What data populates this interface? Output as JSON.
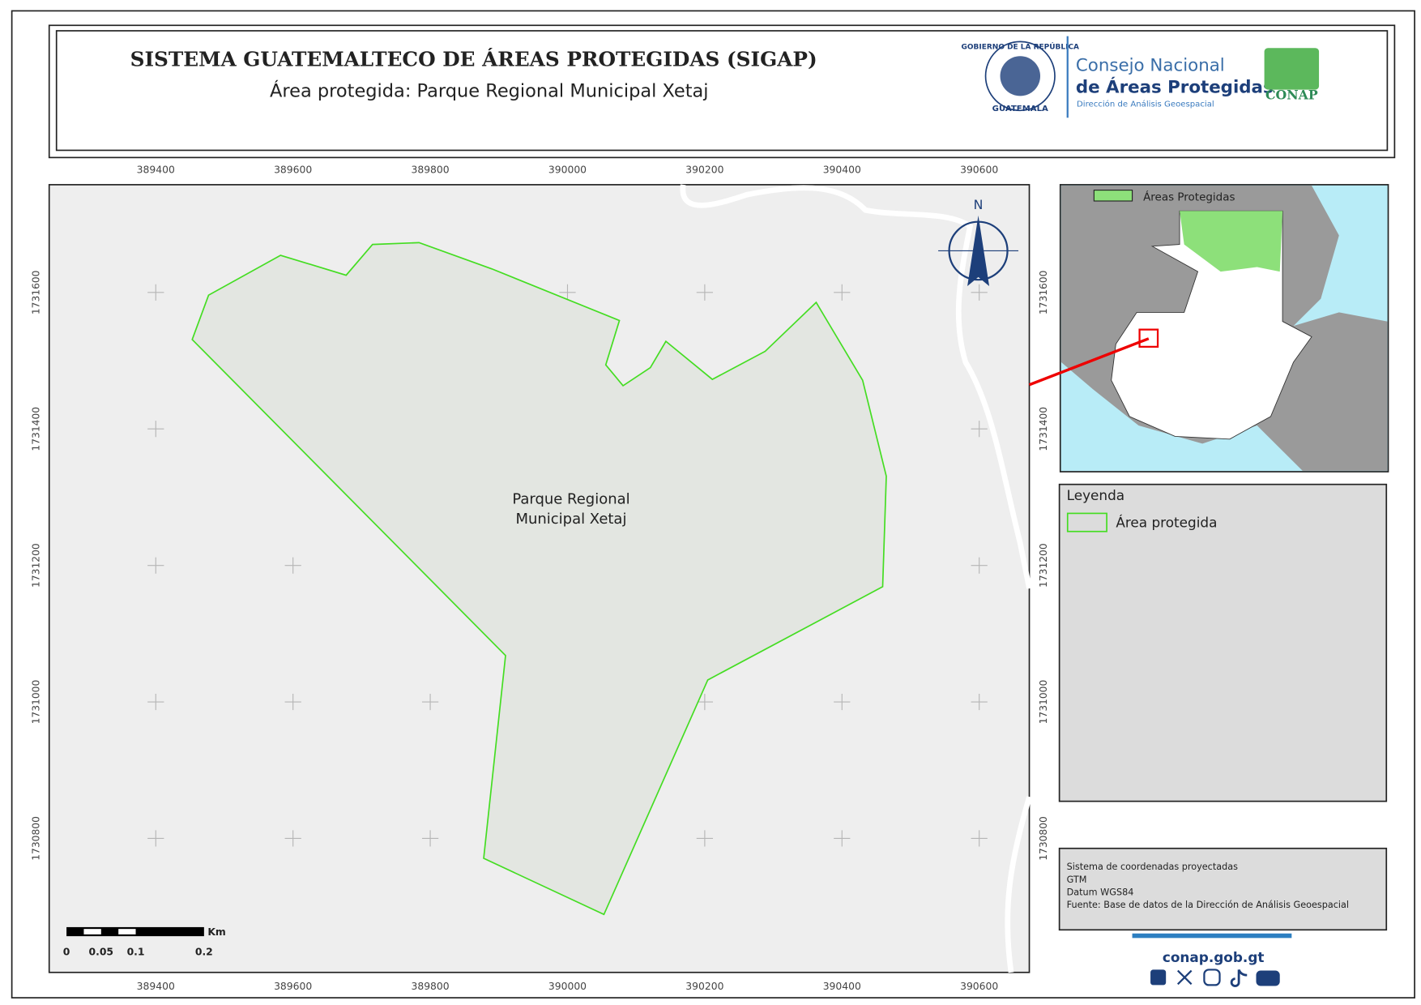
{
  "header": {
    "title": "SISTEMA GUATEMALTECO DE ÁREAS PROTEGIDAS  (SIGAP)",
    "subtitle": "Área protegida: Parque Regional Municipal Xetaj"
  },
  "logos": {
    "seal_top": "GOBIERNO DE LA REPÚBLICA",
    "seal_bottom": "GUATEMALA",
    "council_line1": "Consejo Nacional",
    "council_line2": "de Áreas Protegidas",
    "council_line3": "Dirección de Análisis Geoespacial",
    "conap": "CONAP"
  },
  "map": {
    "x_ticks": [
      389400,
      389600,
      389800,
      390000,
      390200,
      390400,
      390600
    ],
    "y_ticks": [
      1730800,
      1731000,
      1731200,
      1731400,
      1731600
    ],
    "north": "N",
    "area_label": [
      "Parque Regional",
      "Municipal Xetaj"
    ],
    "scale_unit": "Km",
    "scale_labels": [
      0,
      0.05,
      0.1,
      0.2
    ]
  },
  "inset": {
    "legend": "Áreas Protegidas"
  },
  "legend": {
    "title": "Leyenda",
    "item": "Área protegida"
  },
  "info": [
    "Sistema de coordenadas proyectadas",
    "GTM",
    "Datum WGS84",
    "Fuente: Base de datos de la Dirección de Análisis Geoespacial"
  ],
  "footer": {
    "url": "conap.gob.gt"
  }
}
